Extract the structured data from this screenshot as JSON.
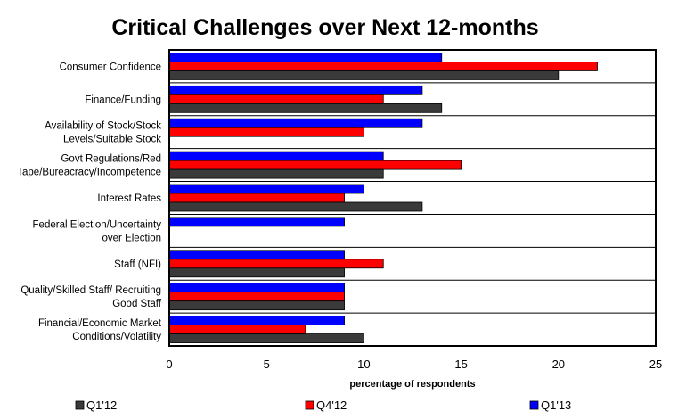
{
  "chart_data": {
    "type": "bar",
    "orientation": "horizontal",
    "title": "Critical Challenges over Next 12-months",
    "xlabel": "percentage of respondents",
    "ylabel": "",
    "xlim": [
      0,
      25
    ],
    "xticks": [
      "0",
      "5",
      "10",
      "15",
      "20",
      "25"
    ],
    "grid": true,
    "legend_position": "bottom",
    "categories": [
      [
        "Consumer Confidence"
      ],
      [
        "Finance/Funding"
      ],
      [
        "Availability of Stock/Stock",
        "Levels/Suitable Stock"
      ],
      [
        "Govt Regulations/Red",
        "Tape/Bureacracy/Incompetence"
      ],
      [
        "Interest Rates"
      ],
      [
        "Federal Election/Uncertainty",
        "over Election"
      ],
      [
        "Staff (NFI)"
      ],
      [
        "Quality/Skilled Staff/ Recruiting",
        "Good Staff"
      ],
      [
        "Financial/Economic Market",
        "Conditions/Volatility"
      ]
    ],
    "series": [
      {
        "name": "Q1'12",
        "color": "#3a3a3a",
        "values": [
          20,
          14,
          0,
          11,
          13,
          0,
          9,
          9,
          10
        ]
      },
      {
        "name": "Q4'12",
        "color": "#ff0000",
        "values": [
          22,
          11,
          10,
          15,
          9,
          0,
          11,
          9,
          7
        ]
      },
      {
        "name": "Q1'13",
        "color": "#0000ff",
        "values": [
          14,
          13,
          13,
          11,
          10,
          9,
          9,
          9,
          9
        ]
      }
    ]
  }
}
